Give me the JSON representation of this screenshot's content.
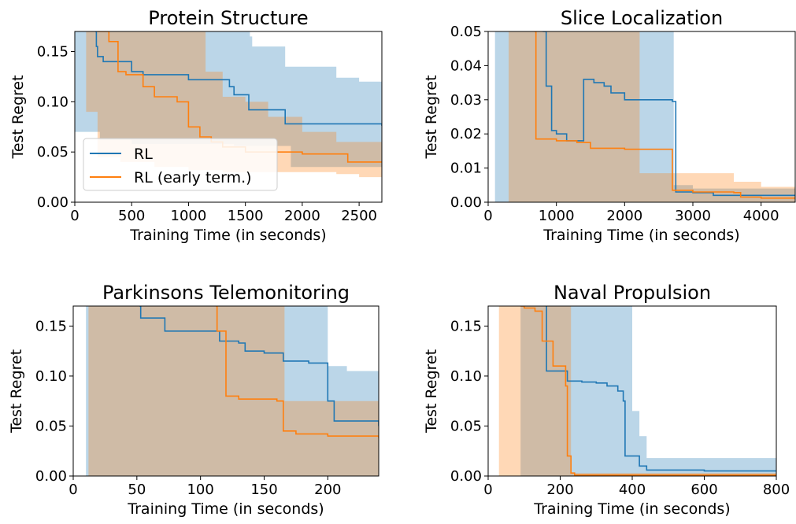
{
  "colors": {
    "rl": "#1f77b4",
    "rl_band": "#1f77b4",
    "early": "#ff7f0e",
    "early_band": "#ff7f0e"
  },
  "legend": {
    "entries": [
      {
        "label": "RL",
        "color": "#1f77b4"
      },
      {
        "label": "RL (early term.)",
        "color": "#ff7f0e"
      }
    ],
    "placement": "lower-left of first panel"
  },
  "chart_data": [
    {
      "type": "line",
      "title": "Protein Structure",
      "xlabel": "Training Time (in seconds)",
      "ylabel": "Test Regret",
      "xlim": [
        0,
        2700
      ],
      "ylim": [
        0,
        0.17
      ],
      "xticks": [
        0,
        500,
        1000,
        1500,
        2000,
        2500
      ],
      "xtick_labels": [
        "0",
        "500",
        "1000",
        "1500",
        "2000",
        "2500"
      ],
      "yticks": [
        0,
        0.05,
        0.1,
        0.15
      ],
      "ytick_labels": [
        "0.00",
        "0.05",
        "0.10",
        "0.15"
      ],
      "legend": true,
      "series": [
        {
          "name": "RL",
          "color": "#1f77b4",
          "x": [
            180,
            190,
            200,
            230,
            250,
            300,
            340,
            500,
            600,
            1000,
            1300,
            1360,
            1400,
            1450,
            1530,
            1850,
            2700
          ],
          "y": [
            0.17,
            0.155,
            0.145,
            0.145,
            0.14,
            0.14,
            0.14,
            0.13,
            0.127,
            0.122,
            0.122,
            0.115,
            0.107,
            0.107,
            0.092,
            0.078,
            0.076
          ],
          "upper_x": [
            0,
            1500,
            1540,
            1560,
            1850,
            2300,
            2500,
            2700
          ],
          "upper_y": [
            0.17,
            0.17,
            0.165,
            0.155,
            0.135,
            0.124,
            0.12,
            0.119
          ],
          "lower_x": [
            0,
            220,
            500,
            1000,
            1400,
            1900,
            2300,
            2700
          ],
          "lower_y": [
            0.07,
            0.062,
            0.058,
            0.058,
            0.056,
            0.035,
            0.035,
            0.035
          ]
        },
        {
          "name": "RL (early term.)",
          "color": "#ff7f0e",
          "x": [
            200,
            300,
            380,
            450,
            600,
            700,
            900,
            1000,
            1100,
            1200,
            1300,
            1500,
            2000,
            2400,
            2700
          ],
          "y": [
            0.17,
            0.16,
            0.13,
            0.127,
            0.115,
            0.105,
            0.1,
            0.075,
            0.065,
            0.06,
            0.055,
            0.05,
            0.048,
            0.04,
            0.04
          ],
          "upper_x": [
            0,
            1000,
            1150,
            1300,
            1500,
            1700,
            2000,
            2300,
            2700
          ],
          "upper_y": [
            0.17,
            0.17,
            0.13,
            0.105,
            0.1,
            0.085,
            0.07,
            0.06,
            0.058
          ],
          "lower_x": [
            0,
            60,
            100,
            200,
            400,
            700,
            1000,
            1300,
            1500,
            1900,
            2300,
            2500,
            2700
          ],
          "lower_y": [
            0.17,
            0.17,
            0.09,
            0.045,
            0.04,
            0.035,
            0.032,
            0.03,
            0.03,
            0.03,
            0.028,
            0.025,
            0.025
          ]
        }
      ]
    },
    {
      "type": "line",
      "title": "Slice Localization",
      "xlabel": "Training Time (in seconds)",
      "ylabel": "Test Regret",
      "xlim": [
        0,
        4500
      ],
      "ylim": [
        0,
        0.05
      ],
      "xticks": [
        0,
        1000,
        2000,
        3000,
        4000
      ],
      "xtick_labels": [
        "0",
        "1000",
        "2000",
        "3000",
        "4000"
      ],
      "yticks": [
        0,
        0.01,
        0.02,
        0.03,
        0.04,
        0.05
      ],
      "ytick_labels": [
        "0.00",
        "0.01",
        "0.02",
        "0.03",
        "0.04",
        "0.05"
      ],
      "legend": false,
      "series": [
        {
          "name": "RL",
          "color": "#1f77b4",
          "x": [
            800,
            850,
            930,
            1000,
            1150,
            1200,
            1350,
            1400,
            1550,
            1700,
            1800,
            2000,
            2200,
            2700,
            2750,
            3000,
            3300,
            4500
          ],
          "y": [
            0.05,
            0.034,
            0.021,
            0.02,
            0.018,
            0.018,
            0.018,
            0.036,
            0.035,
            0.034,
            0.032,
            0.03,
            0.03,
            0.0295,
            0.003,
            0.0028,
            0.002,
            0.002
          ],
          "upper_x": [
            100,
            2700,
            2720,
            3000,
            4500
          ],
          "upper_y": [
            0.05,
            0.05,
            0.005,
            0.004,
            0.004
          ],
          "lower_x": [
            100,
            4500
          ],
          "lower_y": [
            0.0,
            0.0
          ]
        },
        {
          "name": "RL (early term.)",
          "color": "#ff7f0e",
          "x": [
            680,
            700,
            1000,
            1300,
            1500,
            2000,
            2220,
            2700,
            3000,
            3600,
            3700,
            4000,
            4500
          ],
          "y": [
            0.05,
            0.0185,
            0.018,
            0.0175,
            0.0158,
            0.0155,
            0.0155,
            0.0035,
            0.003,
            0.0028,
            0.0015,
            0.0012,
            0.001
          ],
          "upper_x": [
            300,
            2200,
            2220,
            2700,
            3600,
            4000,
            4500
          ],
          "upper_y": [
            0.05,
            0.05,
            0.0085,
            0.0085,
            0.006,
            0.0045,
            0.003
          ],
          "lower_x": [
            300,
            4500
          ],
          "lower_y": [
            0.0,
            0.0
          ]
        }
      ]
    },
    {
      "type": "line",
      "title": "Parkinsons Telemonitoring",
      "xlabel": "Training Time (in seconds)",
      "ylabel": "Test Regret",
      "xlim": [
        0,
        240
      ],
      "ylim": [
        0,
        0.17
      ],
      "xticks": [
        0,
        50,
        100,
        150,
        200
      ],
      "xtick_labels": [
        "0",
        "50",
        "100",
        "150",
        "200"
      ],
      "yticks": [
        0,
        0.05,
        0.1,
        0.15
      ],
      "ytick_labels": [
        "0.00",
        "0.05",
        "0.10",
        "0.15"
      ],
      "legend": false,
      "series": [
        {
          "name": "RL",
          "color": "#1f77b4",
          "x": [
            52,
            53,
            70,
            72,
            110,
            115,
            130,
            135,
            150,
            165,
            185,
            195,
            200,
            205,
            235,
            240
          ],
          "y": [
            0.17,
            0.158,
            0.158,
            0.145,
            0.145,
            0.135,
            0.133,
            0.125,
            0.123,
            0.115,
            0.113,
            0.113,
            0.075,
            0.055,
            0.055,
            0.05
          ],
          "upper_x": [
            10,
            195,
            200,
            215,
            240
          ],
          "upper_y": [
            0.17,
            0.17,
            0.11,
            0.105,
            0.1
          ],
          "lower_x": [
            10,
            240
          ],
          "lower_y": [
            0.0,
            0.0
          ]
        },
        {
          "name": "RL (early term.)",
          "color": "#ff7f0e",
          "x": [
            112,
            113,
            120,
            130,
            160,
            165,
            175,
            200,
            240
          ],
          "y": [
            0.17,
            0.145,
            0.08,
            0.077,
            0.075,
            0.045,
            0.042,
            0.04,
            0.038
          ],
          "upper_x": [
            12,
            165,
            166,
            200,
            240
          ],
          "upper_y": [
            0.17,
            0.17,
            0.075,
            0.075,
            0.07
          ],
          "lower_x": [
            12,
            240
          ],
          "lower_y": [
            0.0,
            0.0
          ]
        }
      ]
    },
    {
      "type": "line",
      "title": "Naval Propulsion",
      "xlabel": "Training Time (in seconds)",
      "ylabel": "Test Regret",
      "xlim": [
        0,
        800
      ],
      "ylim": [
        0,
        0.17
      ],
      "xticks": [
        0,
        200,
        400,
        600,
        800
      ],
      "xtick_labels": [
        "0",
        "200",
        "400",
        "600",
        "800"
      ],
      "yticks": [
        0,
        0.05,
        0.1,
        0.15
      ],
      "ytick_labels": [
        "0.00",
        "0.05",
        "0.10",
        "0.15"
      ],
      "legend": false,
      "series": [
        {
          "name": "RL",
          "color": "#1f77b4",
          "x": [
            160,
            162,
            220,
            260,
            300,
            330,
            360,
            375,
            380,
            400,
            420,
            440,
            500,
            600,
            800
          ],
          "y": [
            0.17,
            0.105,
            0.095,
            0.094,
            0.093,
            0.09,
            0.085,
            0.075,
            0.02,
            0.02,
            0.01,
            0.006,
            0.006,
            0.005,
            0.005
          ],
          "upper_x": [
            90,
            380,
            400,
            420,
            440,
            800
          ],
          "upper_y": [
            0.17,
            0.17,
            0.065,
            0.04,
            0.018,
            0.015
          ],
          "lower_x": [
            90,
            800
          ],
          "lower_y": [
            0.0,
            0.0
          ]
        },
        {
          "name": "RL (early term.)",
          "color": "#ff7f0e",
          "x": [
            90,
            100,
            130,
            150,
            180,
            215,
            220,
            230,
            240,
            800
          ],
          "y": [
            0.17,
            0.168,
            0.165,
            0.135,
            0.11,
            0.09,
            0.02,
            0.003,
            0.001,
            0.001
          ],
          "upper_x": [
            30,
            220,
            230,
            800
          ],
          "upper_y": [
            0.17,
            0.17,
            0.003,
            0.002
          ],
          "lower_x": [
            30,
            800
          ],
          "lower_y": [
            0.0,
            0.0
          ]
        }
      ]
    }
  ]
}
